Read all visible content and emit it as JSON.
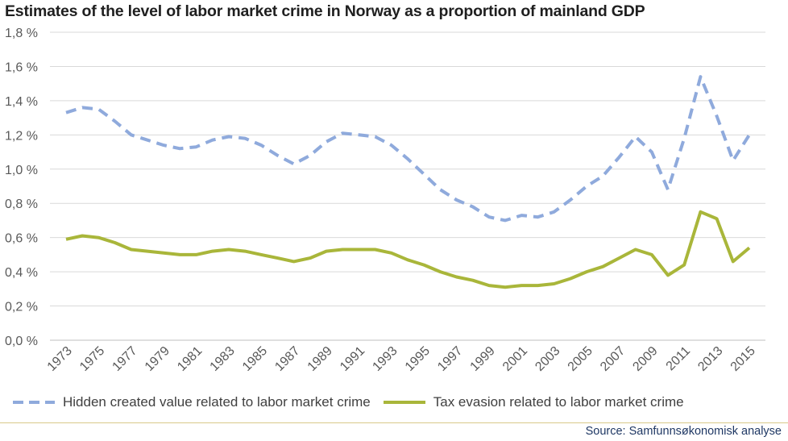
{
  "chart_data": {
    "type": "line",
    "title": "Estimates of the level of labor market crime in Norway as a proportion of mainland GDP",
    "xlabel": "",
    "ylabel": "",
    "x": [
      1973,
      1974,
      1975,
      1976,
      1977,
      1978,
      1979,
      1980,
      1981,
      1982,
      1983,
      1984,
      1985,
      1986,
      1987,
      1988,
      1989,
      1990,
      1991,
      1992,
      1993,
      1994,
      1995,
      1996,
      1997,
      1998,
      1999,
      2000,
      2001,
      2002,
      2003,
      2004,
      2005,
      2006,
      2007,
      2008,
      2009,
      2010,
      2011,
      2012,
      2013,
      2014,
      2015
    ],
    "x_tick_labels": [
      "1973",
      "1975",
      "1977",
      "1979",
      "1981",
      "1983",
      "1985",
      "1987",
      "1989",
      "1991",
      "1993",
      "1995",
      "1997",
      "1999",
      "2001",
      "2003",
      "2005",
      "2007",
      "2009",
      "2011",
      "2013",
      "2015"
    ],
    "ylim": [
      0,
      1.8
    ],
    "y_tick_labels": [
      "0,0 %",
      "0,2 %",
      "0,4 %",
      "0,6 %",
      "0,8 %",
      "1,0 %",
      "1,2 %",
      "1,4 %",
      "1,6 %",
      "1,8 %"
    ],
    "grid": true,
    "legend_position": "bottom",
    "series": [
      {
        "name": "Hidden created value related to labor market crime",
        "color": "#8faadc",
        "style": "dashed",
        "values": [
          1.33,
          1.36,
          1.35,
          1.28,
          1.2,
          1.17,
          1.14,
          1.12,
          1.13,
          1.17,
          1.19,
          1.18,
          1.14,
          1.08,
          1.03,
          1.08,
          1.16,
          1.21,
          1.2,
          1.19,
          1.14,
          1.06,
          0.97,
          0.88,
          0.82,
          0.78,
          0.72,
          0.7,
          0.73,
          0.72,
          0.75,
          0.82,
          0.9,
          0.96,
          1.07,
          1.19,
          1.1,
          0.88,
          1.18,
          1.54,
          1.31,
          1.05,
          1.2
        ]
      },
      {
        "name": "Tax evasion related to labor market crime",
        "color": "#a9b63a",
        "style": "solid",
        "values": [
          0.59,
          0.61,
          0.6,
          0.57,
          0.53,
          0.52,
          0.51,
          0.5,
          0.5,
          0.52,
          0.53,
          0.52,
          0.5,
          0.48,
          0.46,
          0.48,
          0.52,
          0.53,
          0.53,
          0.53,
          0.51,
          0.47,
          0.44,
          0.4,
          0.37,
          0.35,
          0.32,
          0.31,
          0.32,
          0.32,
          0.33,
          0.36,
          0.4,
          0.43,
          0.48,
          0.53,
          0.5,
          0.38,
          0.44,
          0.75,
          0.71,
          0.46,
          0.54
        ]
      }
    ]
  },
  "source": "Source: Samfunnsøkonomisk analyse"
}
